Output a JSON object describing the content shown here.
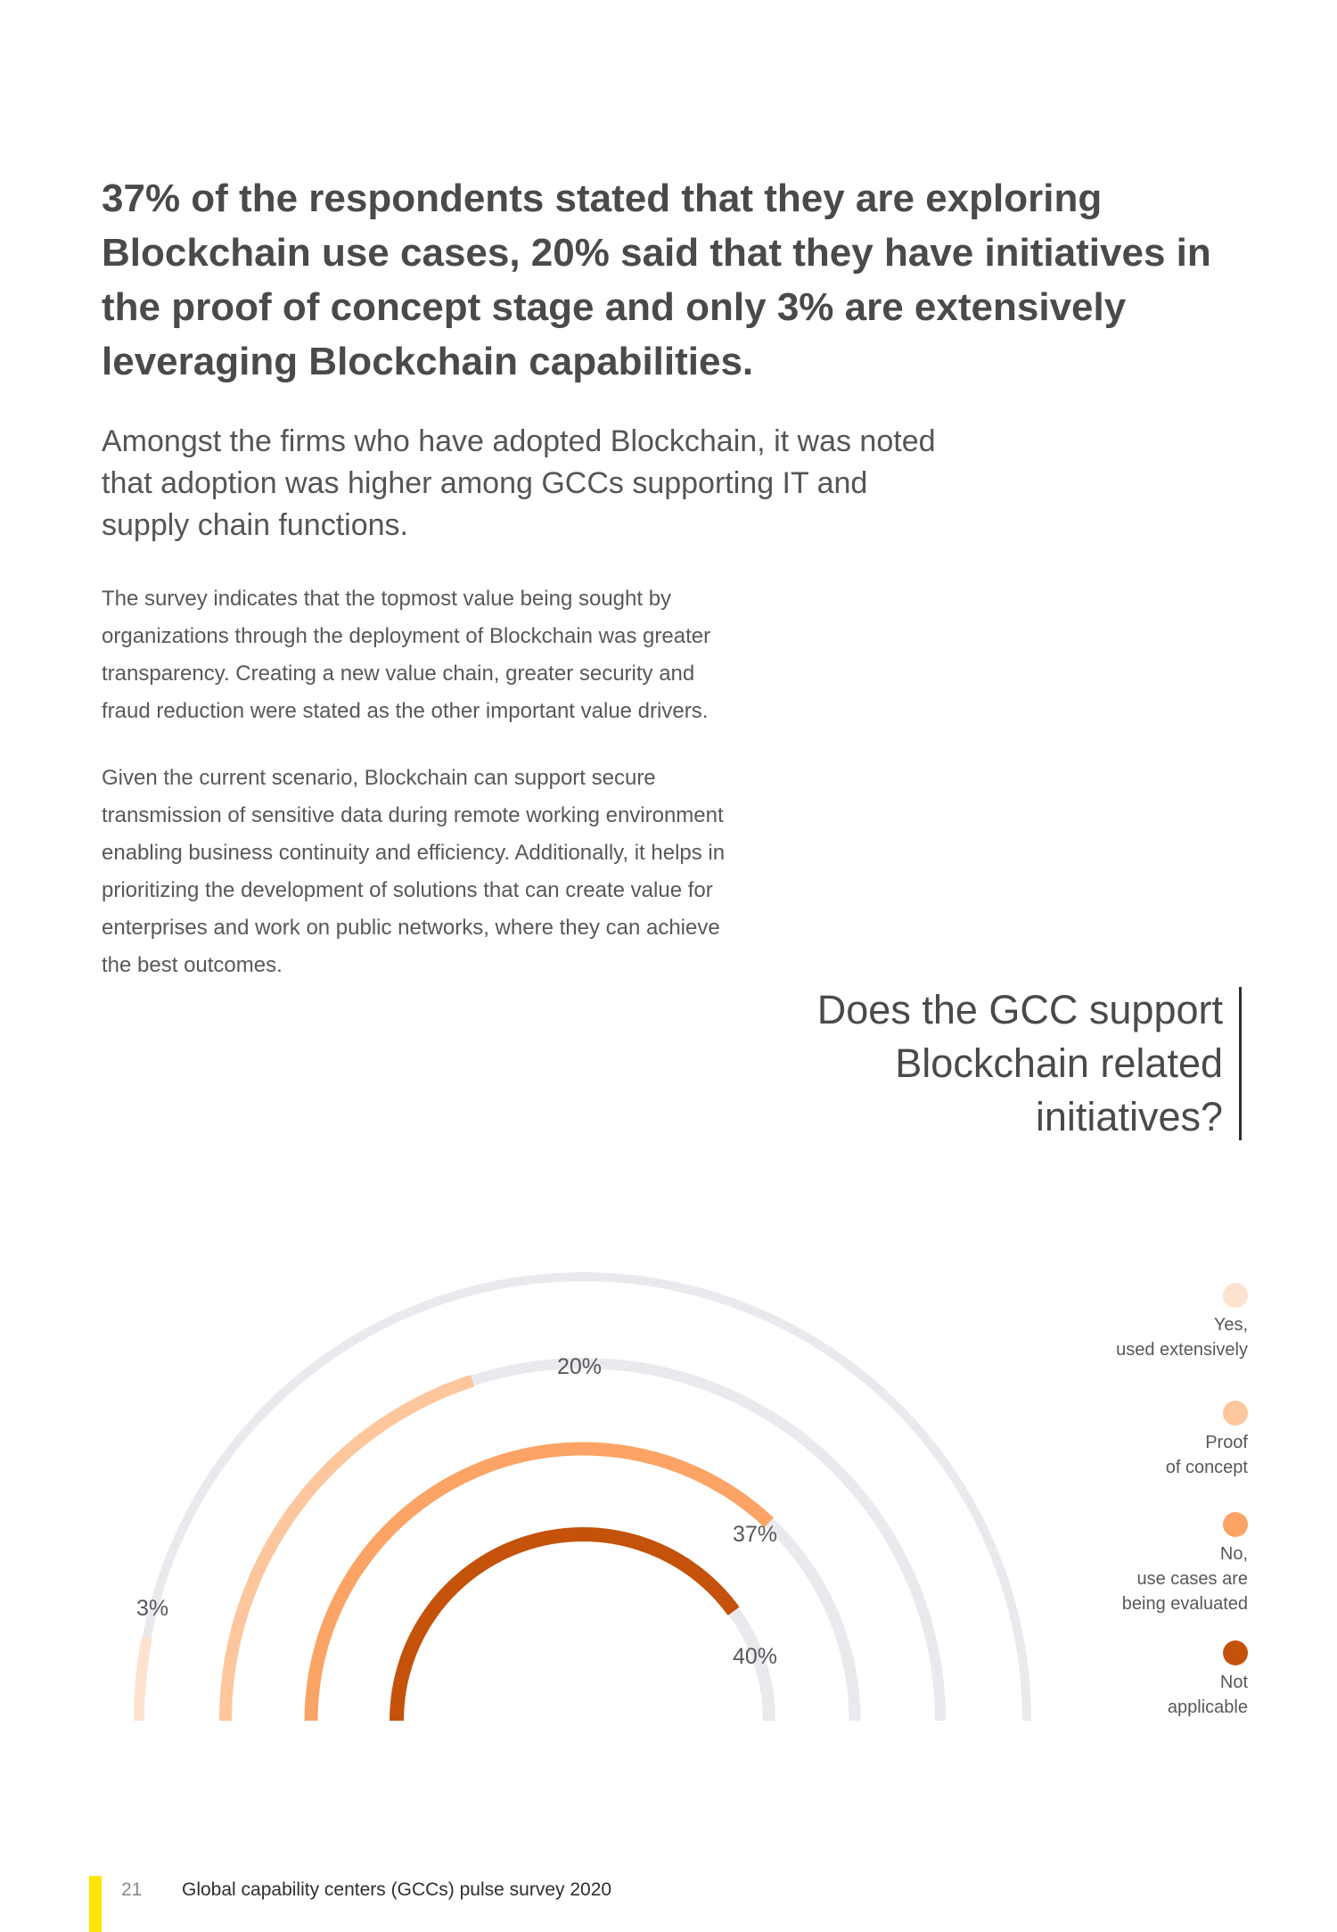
{
  "headline": "37% of the respondents stated that they are exploring Blockchain use cases, 20% said that they have initiatives in the proof of concept stage and only 3% are extensively leveraging Blockchain capabilities.",
  "subheading": "Amongst the firms who have adopted Blockchain, it was noted that adoption was higher among GCCs supporting IT and supply chain functions.",
  "paragraphs": [
    "The survey indicates that the topmost value being sought by organizations through the deployment of Blockchain was greater transparency. Creating a new value chain, greater security and fraud reduction were stated as the other important value drivers.",
    "Given the current scenario, Blockchain can support secure transmission of sensitive data during remote working environment enabling business continuity and efficiency. Additionally, it helps in prioritizing the development of solutions that can create value for enterprises and work on public networks, where they can achieve the best outcomes."
  ],
  "chart_data": {
    "type": "radial-bar",
    "title": "Does the GCC support Blockchain related initiatives?",
    "track_color": "#e9e9ee",
    "series": [
      {
        "name": "Yes, used extensively",
        "value": 3,
        "label": "3%",
        "color": "#fde2d0"
      },
      {
        "name": "Proof of concept",
        "value": 20,
        "label": "20%",
        "color": "#fdc69c"
      },
      {
        "name": "No, use cases are being evaluated",
        "value": 37,
        "label": "37%",
        "color": "#fba465"
      },
      {
        "name": "Not applicable",
        "value": 40,
        "label": "40%",
        "color": "#c4520b"
      }
    ],
    "legend": [
      [
        "Yes,",
        "used extensively"
      ],
      [
        "Proof",
        "of concept"
      ],
      [
        "No,",
        "use cases are",
        "being evaluated"
      ],
      [
        "Not",
        "applicable"
      ]
    ]
  },
  "footer": {
    "page_number": "21",
    "title": "Global capability centers (GCCs) pulse survey 2020",
    "accent": "#ffe600"
  }
}
